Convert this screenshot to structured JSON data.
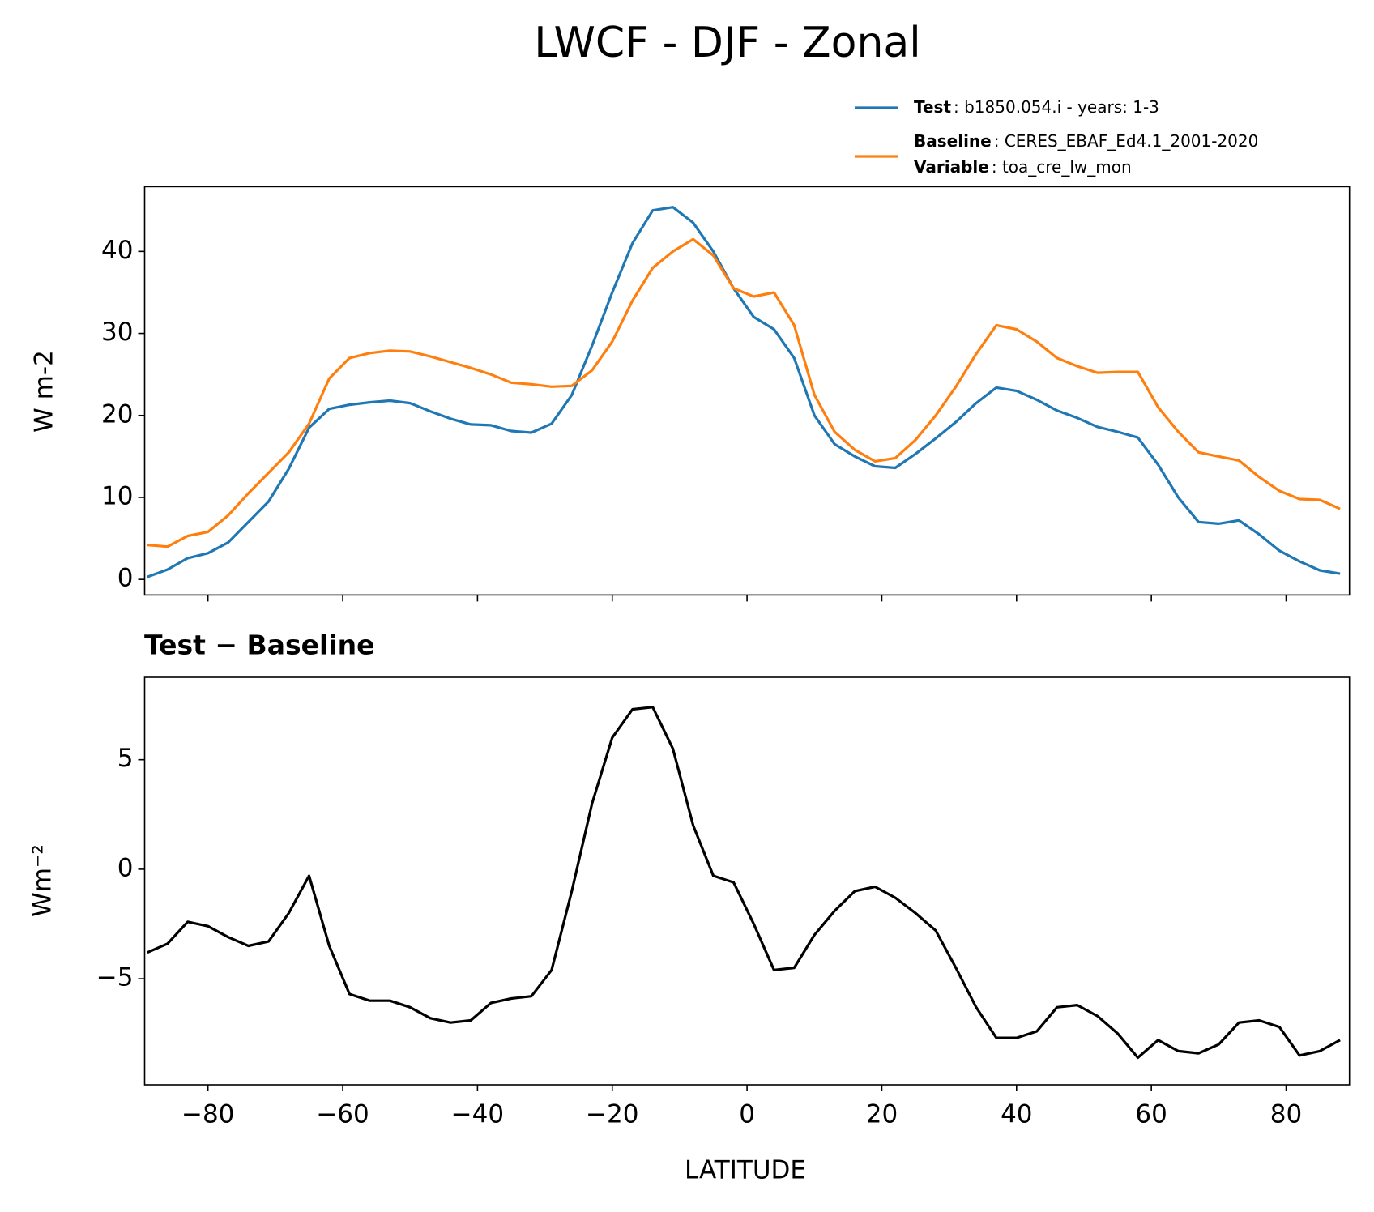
{
  "chart_data": [
    {
      "type": "line",
      "title": "LWCF - DJF - Zonal",
      "ylabel": "W m-2",
      "x": [
        -89,
        -86,
        -83,
        -80,
        -77,
        -74,
        -71,
        -68,
        -65,
        -62,
        -59,
        -56,
        -53,
        -50,
        -47,
        -44,
        -41,
        -38,
        -35,
        -32,
        -29,
        -26,
        -23,
        -20,
        -17,
        -14,
        -11,
        -8,
        -5,
        -2,
        1,
        4,
        7,
        10,
        13,
        16,
        19,
        22,
        25,
        28,
        31,
        34,
        37,
        40,
        43,
        46,
        49,
        52,
        55,
        58,
        61,
        64,
        67,
        70,
        73,
        76,
        79,
        82,
        85,
        88
      ],
      "series": [
        {
          "name": "Test",
          "label": ": b1850.054.i - years: 1-3",
          "color": "#1f77b4",
          "values": [
            0.3,
            1.2,
            2.6,
            3.2,
            4.5,
            7,
            9.5,
            13.5,
            18.5,
            20.8,
            21.3,
            21.6,
            21.8,
            21.5,
            20.5,
            19.6,
            18.9,
            18.8,
            18.1,
            17.9,
            19,
            22.5,
            28.5,
            35,
            41,
            45,
            45.4,
            43.5,
            40,
            35.5,
            32,
            30.5,
            27,
            20,
            16.5,
            15,
            13.8,
            13.6,
            15.3,
            17.2,
            19.2,
            21.5,
            23.4,
            23,
            21.9,
            20.6,
            19.7,
            18.6,
            18,
            17.3,
            14,
            10,
            7,
            6.8,
            7.2,
            5.5,
            3.5,
            2.2,
            1.1,
            0.7
          ]
        },
        {
          "name": "Baseline",
          "label": ": CERES_EBAF_Ed4.1_2001-2020",
          "color": "#ff7f0e",
          "values": [
            4.2,
            4,
            5.3,
            5.8,
            7.8,
            10.5,
            13,
            15.5,
            19,
            24.5,
            27,
            27.6,
            27.9,
            27.8,
            27.2,
            26.5,
            25.8,
            25,
            24,
            23.8,
            23.5,
            23.6,
            25.5,
            29,
            34,
            38,
            40,
            41.5,
            39.5,
            35.5,
            34.5,
            35,
            31,
            22.5,
            18,
            15.8,
            14.4,
            14.8,
            17,
            20,
            23.5,
            27.5,
            31,
            30.5,
            29,
            27,
            26,
            25.2,
            25.3,
            25.3,
            21,
            18,
            15.5,
            15,
            14.5,
            12.5,
            10.8,
            9.8,
            9.7,
            8.6
          ]
        }
      ],
      "variable_name": "Variable",
      "variable_label": ": toa_cre_lw_mon",
      "xlim": [
        -89.4,
        89.4
      ],
      "ylim": [
        -1.9,
        47.9
      ],
      "yticks": [
        0,
        10,
        20,
        30,
        40
      ]
    },
    {
      "type": "line",
      "title": "Test − Baseline",
      "xlabel": "LATITUDE",
      "ylabel": "Wm⁻²",
      "x": [
        -89,
        -86,
        -83,
        -80,
        -77,
        -74,
        -71,
        -68,
        -65,
        -62,
        -59,
        -56,
        -53,
        -50,
        -47,
        -44,
        -41,
        -38,
        -35,
        -32,
        -29,
        -26,
        -23,
        -20,
        -17,
        -14,
        -11,
        -8,
        -5,
        -2,
        1,
        4,
        7,
        10,
        13,
        16,
        19,
        22,
        25,
        28,
        31,
        34,
        37,
        40,
        43,
        46,
        49,
        52,
        55,
        58,
        61,
        64,
        67,
        70,
        73,
        76,
        79,
        82,
        85,
        88
      ],
      "series": [
        {
          "color": "#000000",
          "values": [
            -3.8,
            -3.4,
            -2.4,
            -2.6,
            -3.1,
            -3.5,
            -3.3,
            -2,
            -0.3,
            -3.5,
            -5.7,
            -6,
            -6,
            -6.3,
            -6.8,
            -7,
            -6.9,
            -6.1,
            -5.9,
            -5.8,
            -4.6,
            -1,
            3,
            6,
            7.3,
            7.4,
            5.5,
            2,
            -0.3,
            -0.6,
            -2.5,
            -4.6,
            -4.5,
            -3,
            -1.9,
            -1,
            -0.8,
            -1.3,
            -2,
            -2.8,
            -4.5,
            -6.3,
            -7.7,
            -7.7,
            -7.4,
            -6.3,
            -6.2,
            -6.7,
            -7.5,
            -8.6,
            -7.8,
            -8.3,
            -8.4,
            -8,
            -7,
            -6.9,
            -7.2,
            -8.5,
            -8.3,
            -7.8
          ]
        }
      ],
      "xlim": [
        -89.4,
        89.4
      ],
      "ylim": [
        -9.84,
        8.76
      ],
      "xticks": [
        {
          "value": -80,
          "label": "−80"
        },
        {
          "value": -60,
          "label": "−60"
        },
        {
          "value": -40,
          "label": "−40"
        },
        {
          "value": -20,
          "label": "−20"
        },
        0,
        20,
        40,
        60,
        80
      ],
      "yticks": [
        {
          "value": -5,
          "label": "−5"
        },
        0,
        5
      ]
    }
  ]
}
